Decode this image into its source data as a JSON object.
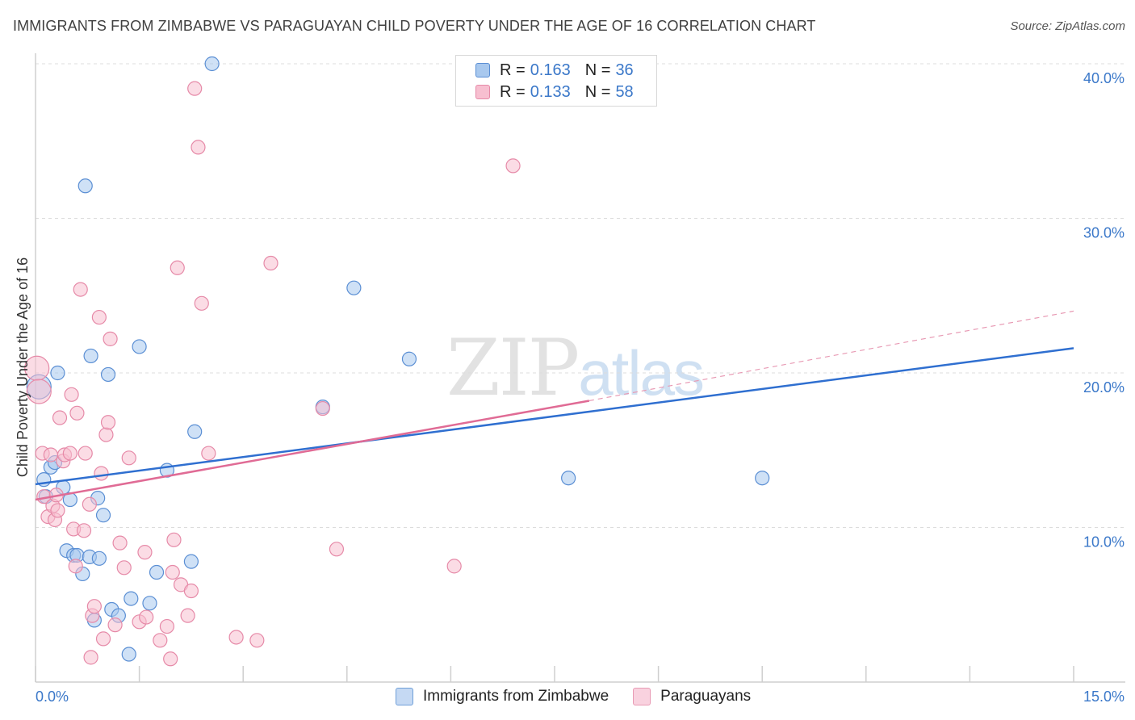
{
  "header": {
    "title": "IMMIGRANTS FROM ZIMBABWE VS PARAGUAYAN CHILD POVERTY UNDER THE AGE OF 16 CORRELATION CHART",
    "source": "Source: ZipAtlas.com"
  },
  "watermark": {
    "zip": "ZIP",
    "atlas": "atlas"
  },
  "legend": {
    "r_label": "R =",
    "n_label": "N =",
    "items": [
      {
        "r": "0.163",
        "n": "36",
        "color": "#a8c8ee",
        "stroke": "#5b8fd4"
      },
      {
        "r": "0.133",
        "n": "58",
        "color": "#f7bfd0",
        "stroke": "#e68aa8"
      }
    ]
  },
  "bottom_legend": [
    {
      "label": "Immigrants from Zimbabwe",
      "color": "#c5d9f3",
      "stroke": "#6f9fd8"
    },
    {
      "label": "Paraguayans",
      "color": "#f9d2df",
      "stroke": "#e89ab4"
    }
  ],
  "chart_data": {
    "type": "scatter",
    "title": "IMMIGRANTS FROM ZIMBABWE VS PARAGUAYAN CHILD POVERTY UNDER THE AGE OF 16 CORRELATION CHART",
    "xlabel": "",
    "ylabel": "Child Poverty Under the Age of 16",
    "xlim": [
      0,
      15
    ],
    "ylim": [
      0,
      40
    ],
    "x_tick_labels": [
      "0.0%",
      "15.0%"
    ],
    "y_tick_labels": [
      "10.0%",
      "20.0%",
      "30.0%",
      "40.0%"
    ],
    "y_ticks": [
      10,
      20,
      30,
      40
    ],
    "grid": true,
    "series": [
      {
        "name": "Immigrants from Zimbabwe",
        "color": "#a8c8ee",
        "stroke": "#5b8fd4",
        "trend": {
          "x": [
            0,
            15
          ],
          "y": [
            12.8,
            21.6
          ],
          "color": "#2f6fd0"
        },
        "points": [
          [
            0.05,
            19.1
          ],
          [
            0.12,
            13.1
          ],
          [
            0.15,
            12.0
          ],
          [
            0.22,
            13.9
          ],
          [
            0.28,
            14.2
          ],
          [
            0.32,
            20.0
          ],
          [
            0.4,
            12.6
          ],
          [
            0.45,
            8.5
          ],
          [
            0.5,
            11.8
          ],
          [
            0.55,
            8.2
          ],
          [
            0.6,
            8.2
          ],
          [
            0.68,
            7.0
          ],
          [
            0.78,
            8.1
          ],
          [
            0.8,
            21.1
          ],
          [
            0.85,
            4.0
          ],
          [
            0.9,
            11.9
          ],
          [
            0.92,
            8.0
          ],
          [
            0.98,
            10.8
          ],
          [
            1.05,
            19.9
          ],
          [
            1.1,
            4.7
          ],
          [
            1.2,
            4.3
          ],
          [
            1.35,
            1.8
          ],
          [
            1.38,
            5.4
          ],
          [
            1.5,
            21.7
          ],
          [
            1.65,
            5.1
          ],
          [
            1.75,
            7.1
          ],
          [
            1.9,
            13.7
          ],
          [
            2.25,
            7.8
          ],
          [
            2.3,
            16.2
          ],
          [
            2.55,
            40.0
          ],
          [
            4.15,
            17.8
          ],
          [
            4.6,
            25.5
          ],
          [
            5.4,
            20.9
          ],
          [
            7.7,
            13.2
          ],
          [
            10.5,
            13.2
          ],
          [
            0.72,
            32.1
          ]
        ]
      },
      {
        "name": "Paraguayans",
        "color": "#f7bfd0",
        "stroke": "#e68aa8",
        "trend": {
          "x": [
            0,
            8.0
          ],
          "y": [
            11.8,
            18.2
          ],
          "color": "#e06b95"
        },
        "trend_dashed": {
          "x": [
            8.0,
            15
          ],
          "y": [
            18.2,
            24.0
          ],
          "color": "#e89ab4"
        },
        "points": [
          [
            0.02,
            20.3
          ],
          [
            0.05,
            18.8
          ],
          [
            0.1,
            14.8
          ],
          [
            0.12,
            12.0
          ],
          [
            0.18,
            10.7
          ],
          [
            0.22,
            14.7
          ],
          [
            0.25,
            11.4
          ],
          [
            0.28,
            10.5
          ],
          [
            0.32,
            11.1
          ],
          [
            0.35,
            17.1
          ],
          [
            0.4,
            14.3
          ],
          [
            0.42,
            14.7
          ],
          [
            0.5,
            14.8
          ],
          [
            0.52,
            18.6
          ],
          [
            0.55,
            9.9
          ],
          [
            0.58,
            7.5
          ],
          [
            0.6,
            17.4
          ],
          [
            0.65,
            25.4
          ],
          [
            0.7,
            9.8
          ],
          [
            0.72,
            14.8
          ],
          [
            0.78,
            11.5
          ],
          [
            0.8,
            1.6
          ],
          [
            0.82,
            4.3
          ],
          [
            0.85,
            4.9
          ],
          [
            0.92,
            23.6
          ],
          [
            0.95,
            13.5
          ],
          [
            0.98,
            2.8
          ],
          [
            1.02,
            16.0
          ],
          [
            1.05,
            16.8
          ],
          [
            1.08,
            22.2
          ],
          [
            1.15,
            3.7
          ],
          [
            1.22,
            9.0
          ],
          [
            1.28,
            7.4
          ],
          [
            1.35,
            14.5
          ],
          [
            1.5,
            3.9
          ],
          [
            1.58,
            8.4
          ],
          [
            1.6,
            4.2
          ],
          [
            1.8,
            2.7
          ],
          [
            1.9,
            3.6
          ],
          [
            1.95,
            1.5
          ],
          [
            1.98,
            7.1
          ],
          [
            2.0,
            9.2
          ],
          [
            2.05,
            26.8
          ],
          [
            2.1,
            6.3
          ],
          [
            2.2,
            4.3
          ],
          [
            2.25,
            5.9
          ],
          [
            2.3,
            38.4
          ],
          [
            2.35,
            34.6
          ],
          [
            2.4,
            24.5
          ],
          [
            2.5,
            14.8
          ],
          [
            2.9,
            2.9
          ],
          [
            3.2,
            2.7
          ],
          [
            3.4,
            27.1
          ],
          [
            4.15,
            17.7
          ],
          [
            4.35,
            8.6
          ],
          [
            6.05,
            7.5
          ],
          [
            6.9,
            33.4
          ],
          [
            0.3,
            12.1
          ]
        ]
      }
    ]
  }
}
